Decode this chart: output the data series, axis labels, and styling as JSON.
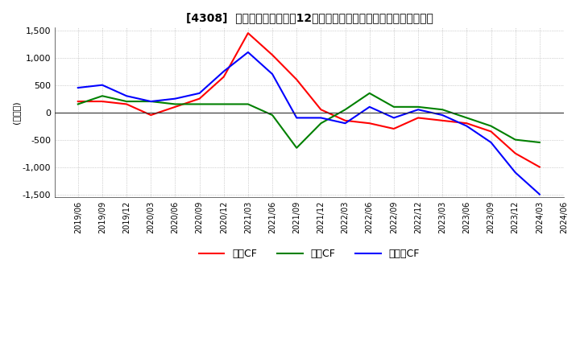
{
  "title": "[4308]  キャッシュフローの12か月移動合計の対前年同期増減額の推移",
  "ylabel": "(百万円)",
  "ylim": [
    -1550,
    1550
  ],
  "yticks": [
    -1500,
    -1000,
    -500,
    0,
    500,
    1000,
    1500
  ],
  "dates": [
    "2019/06",
    "2019/09",
    "2019/12",
    "2020/03",
    "2020/06",
    "2020/09",
    "2020/12",
    "2021/03",
    "2021/06",
    "2021/09",
    "2021/12",
    "2022/03",
    "2022/06",
    "2022/09",
    "2022/12",
    "2023/03",
    "2023/06",
    "2023/09",
    "2023/12",
    "2024/03",
    "2024/06"
  ],
  "operating_cf": [
    200,
    200,
    150,
    -50,
    100,
    250,
    650,
    1450,
    1050,
    600,
    50,
    -150,
    -200,
    -300,
    -100,
    -150,
    -200,
    -350,
    -750,
    -1000,
    null
  ],
  "investing_cf": [
    150,
    300,
    200,
    200,
    150,
    150,
    150,
    150,
    -50,
    -650,
    -200,
    50,
    350,
    100,
    100,
    50,
    -100,
    -250,
    -500,
    -550,
    null
  ],
  "free_cf": [
    450,
    500,
    300,
    200,
    250,
    350,
    750,
    1100,
    700,
    -100,
    -100,
    -200,
    100,
    -100,
    50,
    -50,
    -250,
    -550,
    -1100,
    -1500,
    null
  ],
  "operating_color": "#ff0000",
  "investing_color": "#008000",
  "free_cf_color": "#0000ff",
  "background_color": "#ffffff",
  "grid_color": "#aaaaaa",
  "legend_labels": [
    "営業CF",
    "投資CF",
    "フリーCF"
  ]
}
